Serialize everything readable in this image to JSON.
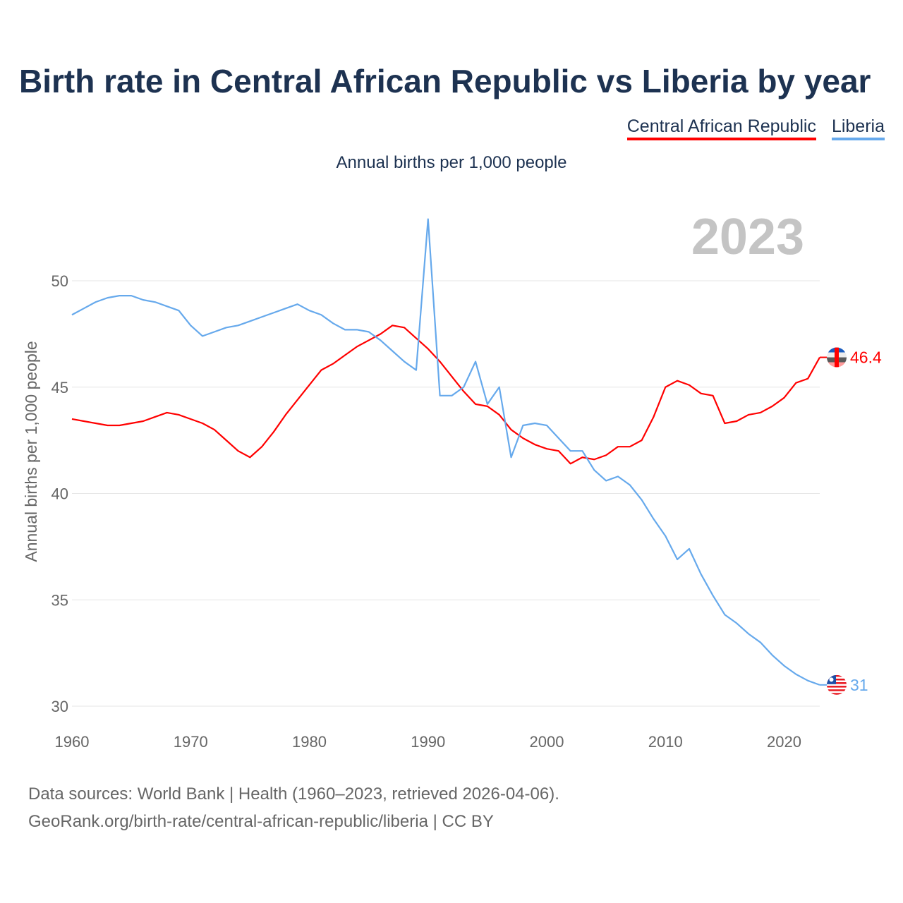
{
  "chart_data": {
    "type": "line",
    "title": "Birth rate in Central African Republic vs Liberia by year",
    "subtitle": "Annual births per 1,000 people",
    "ylabel": "Annual births per 1,000 people",
    "xlabel": "",
    "year_watermark": "2023",
    "xlim": [
      1960,
      2023
    ],
    "ylim": [
      30,
      50
    ],
    "grid": true,
    "legend_placement": "top-right",
    "x_ticks": [
      1960,
      1970,
      1980,
      1990,
      2000,
      2010,
      2020
    ],
    "y_ticks": [
      30,
      35,
      40,
      45,
      50
    ],
    "x": [
      1960,
      1961,
      1962,
      1963,
      1964,
      1965,
      1966,
      1967,
      1968,
      1969,
      1970,
      1971,
      1972,
      1973,
      1974,
      1975,
      1976,
      1977,
      1978,
      1979,
      1980,
      1981,
      1982,
      1983,
      1984,
      1985,
      1986,
      1987,
      1988,
      1989,
      1990,
      1991,
      1992,
      1993,
      1994,
      1995,
      1996,
      1997,
      1998,
      1999,
      2000,
      2001,
      2002,
      2003,
      2004,
      2005,
      2006,
      2007,
      2008,
      2009,
      2010,
      2011,
      2012,
      2013,
      2014,
      2015,
      2016,
      2017,
      2018,
      2019,
      2020,
      2021,
      2022,
      2023
    ],
    "series": [
      {
        "name": "Central African Republic",
        "color": "#ff0000",
        "end_label": "46.4",
        "values": [
          43.5,
          43.4,
          43.3,
          43.2,
          43.2,
          43.3,
          43.4,
          43.6,
          43.8,
          43.7,
          43.5,
          43.3,
          43.0,
          42.5,
          42.0,
          41.7,
          42.2,
          42.9,
          43.7,
          44.4,
          45.1,
          45.8,
          46.1,
          46.5,
          46.9,
          47.2,
          47.5,
          47.9,
          47.8,
          47.3,
          46.8,
          46.2,
          45.5,
          44.8,
          44.2,
          44.1,
          43.7,
          43.0,
          42.6,
          42.3,
          42.1,
          42.0,
          41.4,
          41.7,
          41.6,
          41.8,
          42.2,
          42.2,
          42.5,
          43.6,
          45.0,
          45.3,
          45.1,
          44.7,
          44.6,
          43.3,
          43.4,
          43.7,
          43.8,
          44.1,
          44.5,
          45.2,
          45.4,
          46.4
        ]
      },
      {
        "name": "Liberia",
        "color": "#66a9ec",
        "end_label": "31",
        "values": [
          48.4,
          48.7,
          49.0,
          49.2,
          49.3,
          49.3,
          49.1,
          49.0,
          48.8,
          48.6,
          47.9,
          47.4,
          47.6,
          47.8,
          47.9,
          48.1,
          48.3,
          48.5,
          48.7,
          48.9,
          48.6,
          48.4,
          48.0,
          47.7,
          47.7,
          47.6,
          47.2,
          46.7,
          46.2,
          45.8,
          52.9,
          44.6,
          44.6,
          45.0,
          46.2,
          44.2,
          45.0,
          41.7,
          43.2,
          43.3,
          43.2,
          42.6,
          42.0,
          42.0,
          41.1,
          40.6,
          40.8,
          40.4,
          39.7,
          38.8,
          38.0,
          36.9,
          37.4,
          36.2,
          35.2,
          34.3,
          33.9,
          33.4,
          33.0,
          32.4,
          31.9,
          31.5,
          31.2,
          31.0
        ]
      }
    ]
  },
  "footer": {
    "line1": "Data sources: World Bank | Health (1960–2023, retrieved 2026-04-06).",
    "line2": "GeoRank.org/birth-rate/central-african-republic/liberia | CC BY"
  }
}
